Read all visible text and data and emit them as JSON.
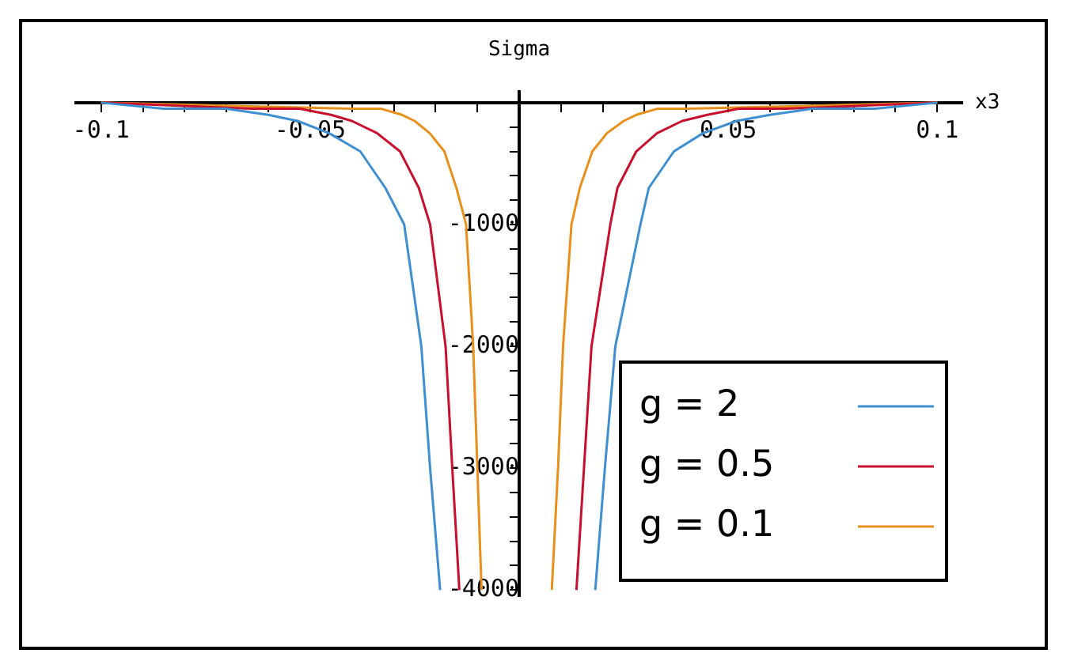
{
  "chart_data": {
    "type": "line",
    "ylabel": "Sigma",
    "xlabel": "x3",
    "xlim": [
      -0.106,
      0.106
    ],
    "ylim": [
      -4050,
      90
    ],
    "xticks": [
      {
        "value": -0.1,
        "label": "-0.1"
      },
      {
        "value": -0.09,
        "label": null
      },
      {
        "value": -0.08,
        "label": null
      },
      {
        "value": -0.07,
        "label": null
      },
      {
        "value": -0.06,
        "label": null
      },
      {
        "value": -0.05,
        "label": "-0.05"
      },
      {
        "value": -0.04,
        "label": null
      },
      {
        "value": -0.03,
        "label": null
      },
      {
        "value": -0.02,
        "label": null
      },
      {
        "value": -0.01,
        "label": null
      },
      {
        "value": 0.01,
        "label": null
      },
      {
        "value": 0.02,
        "label": null
      },
      {
        "value": 0.03,
        "label": null
      },
      {
        "value": 0.04,
        "label": null
      },
      {
        "value": 0.05,
        "label": "0.05"
      },
      {
        "value": 0.06,
        "label": null
      },
      {
        "value": 0.07,
        "label": null
      },
      {
        "value": 0.08,
        "label": null
      },
      {
        "value": 0.09,
        "label": null
      },
      {
        "value": 0.1,
        "label": "0.1"
      }
    ],
    "yticks": [
      {
        "value": -200,
        "label": null
      },
      {
        "value": -400,
        "label": null
      },
      {
        "value": -600,
        "label": null
      },
      {
        "value": -800,
        "label": null
      },
      -1000,
      {
        "value": -1200,
        "label": null
      },
      {
        "value": -1400,
        "label": null
      },
      {
        "value": -1600,
        "label": null
      },
      {
        "value": -1800,
        "label": null
      },
      -2000,
      {
        "value": -2200,
        "label": null
      },
      {
        "value": -2400,
        "label": null
      },
      {
        "value": -2600,
        "label": null
      },
      {
        "value": -2800,
        "label": null
      },
      -3000,
      {
        "value": -3200,
        "label": null
      },
      {
        "value": -3400,
        "label": null
      },
      {
        "value": -3600,
        "label": null
      },
      {
        "value": -3800,
        "label": null
      },
      -4000
    ],
    "grid": false,
    "legend": "bottom right",
    "marker": "none",
    "line_style": "solid",
    "series": [
      {
        "name": "g = 2",
        "color": "#3d8fd1",
        "x": [
          -0.1,
          -0.085,
          -0.07,
          -0.06,
          -0.053,
          -0.0455,
          -0.038,
          -0.032,
          -0.0275,
          -0.0234,
          -0.0213,
          -0.0189,
          null,
          0.0182,
          0.0205,
          0.023,
          0.029,
          0.031,
          0.037,
          0.044,
          0.052,
          0.06,
          0.07,
          0.085,
          0.1
        ],
        "values": [
          0,
          -50,
          -50,
          -100,
          -150,
          -250,
          -400,
          -700,
          -1000,
          -2000,
          -3000,
          -4000,
          null,
          -4000,
          -3000,
          -2000,
          -1000,
          -700,
          -400,
          -250,
          -150,
          -100,
          -50,
          -50,
          0
        ]
      },
      {
        "name": "g = 0.5",
        "color": "#c8102e",
        "x": [
          -0.1,
          -0.064,
          -0.0525,
          -0.045,
          -0.04,
          -0.034,
          -0.0285,
          -0.024,
          -0.0213,
          -0.0176,
          -0.016,
          -0.0143,
          null,
          0.0137,
          0.0155,
          0.0173,
          0.0218,
          0.0235,
          0.028,
          0.033,
          0.039,
          0.045,
          0.0525,
          0.064,
          0.1
        ],
        "values": [
          0,
          -50,
          -50,
          -100,
          -150,
          -250,
          -400,
          -700,
          -1000,
          -2000,
          -3000,
          -4000,
          null,
          -4000,
          -3000,
          -2000,
          -1000,
          -700,
          -400,
          -250,
          -150,
          -100,
          -50,
          -50,
          0
        ]
      },
      {
        "name": "g = 0.1",
        "color": "#e8901c",
        "x": [
          -0.1,
          -0.04,
          -0.033,
          -0.028,
          -0.025,
          -0.0214,
          -0.0179,
          -0.015,
          -0.0127,
          -0.011,
          -0.01,
          -0.009,
          null,
          0.0078,
          0.0093,
          0.0105,
          0.0125,
          0.0145,
          0.0175,
          0.021,
          0.025,
          0.028,
          0.033,
          0.04,
          0.1
        ],
        "values": [
          0,
          -50,
          -50,
          -100,
          -150,
          -250,
          -400,
          -700,
          -1000,
          -2000,
          -3000,
          -4000,
          null,
          -4000,
          -3000,
          -2000,
          -1000,
          -700,
          -400,
          -250,
          -150,
          -100,
          -50,
          -50,
          0
        ]
      }
    ]
  }
}
